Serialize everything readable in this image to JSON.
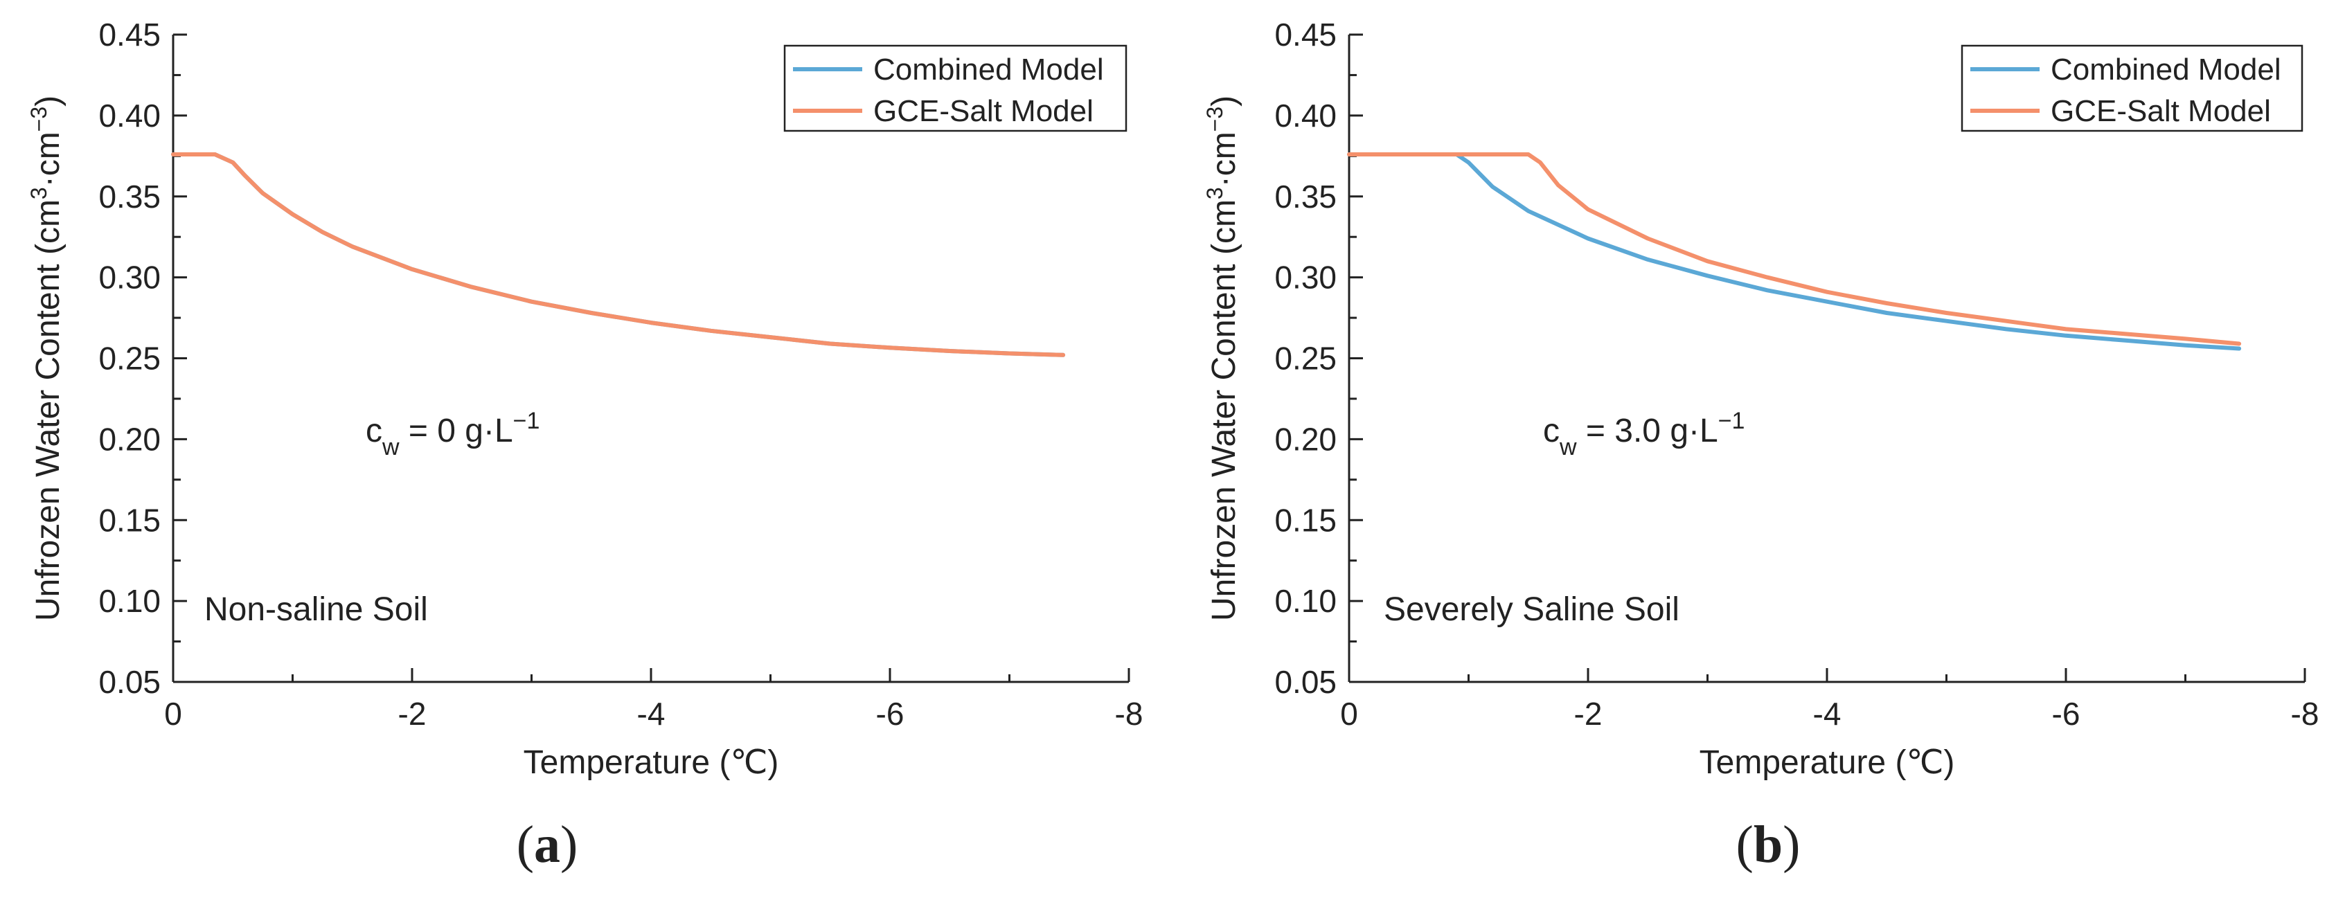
{
  "chart_data": [
    {
      "type": "line",
      "panel_label": "a",
      "title": "",
      "xlabel": "Temperature (℃)",
      "ylabel_main": "Unfrozen Water Content (cm",
      "ylabel_mid": "·cm",
      "ylabel_end": ")",
      "ylabel_sup1": "3",
      "ylabel_sup2": "−3",
      "xlim": [
        0,
        -8
      ],
      "ylim": [
        0.05,
        0.45
      ],
      "xticks": [
        0,
        -2,
        -4,
        -6,
        -8
      ],
      "xtick_labels": [
        "0",
        "-2",
        "-4",
        "-6",
        "-8"
      ],
      "yticks": [
        0.05,
        0.1,
        0.15,
        0.2,
        0.25,
        0.3,
        0.35,
        0.4,
        0.45
      ],
      "ytick_labels": [
        "0.05",
        "0.10",
        "0.15",
        "0.20",
        "0.25",
        "0.30",
        "0.35",
        "0.40",
        "0.45"
      ],
      "legend_position": "top-right",
      "legend": [
        "Combined Model",
        "GCE-Salt Model"
      ],
      "annotation_soil": "Non-saline Soil",
      "annotation_c_base": "c",
      "annotation_c_sub": "w",
      "annotation_c_value": " = 0 g·L",
      "annotation_c_sup": "−1",
      "series": [
        {
          "name": "Combined Model",
          "color": "#5ba8d6",
          "x": [
            0,
            -0.35,
            -0.5,
            -0.6,
            -0.75,
            -1.0,
            -1.25,
            -1.5,
            -2.0,
            -2.5,
            -3.0,
            -3.5,
            -4.0,
            -4.5,
            -5.0,
            -5.5,
            -6.0,
            -6.5,
            -7.0,
            -7.45
          ],
          "y": [
            0.376,
            0.376,
            0.371,
            0.363,
            0.352,
            0.339,
            0.328,
            0.319,
            0.305,
            0.294,
            0.285,
            0.278,
            0.272,
            0.267,
            0.263,
            0.259,
            0.2565,
            0.2545,
            0.253,
            0.252
          ]
        },
        {
          "name": "GCE-Salt Model",
          "color": "#f4906b",
          "x": [
            0,
            -0.35,
            -0.5,
            -0.6,
            -0.75,
            -1.0,
            -1.25,
            -1.5,
            -2.0,
            -2.5,
            -3.0,
            -3.5,
            -4.0,
            -4.5,
            -5.0,
            -5.5,
            -6.0,
            -6.5,
            -7.0,
            -7.45
          ],
          "y": [
            0.376,
            0.376,
            0.371,
            0.363,
            0.352,
            0.339,
            0.328,
            0.319,
            0.305,
            0.294,
            0.285,
            0.278,
            0.272,
            0.267,
            0.263,
            0.259,
            0.2565,
            0.2545,
            0.253,
            0.252
          ]
        }
      ]
    },
    {
      "type": "line",
      "panel_label": "b",
      "title": "",
      "xlabel": "Temperature (℃)",
      "ylabel_main": "Unfrozen Water Content (cm",
      "ylabel_mid": "·cm",
      "ylabel_end": ")",
      "ylabel_sup1": "3",
      "ylabel_sup2": "−3",
      "xlim": [
        0,
        -8
      ],
      "ylim": [
        0.05,
        0.45
      ],
      "xticks": [
        0,
        -2,
        -4,
        -6,
        -8
      ],
      "xtick_labels": [
        "0",
        "-2",
        "-4",
        "-6",
        "-8"
      ],
      "yticks": [
        0.05,
        0.1,
        0.15,
        0.2,
        0.25,
        0.3,
        0.35,
        0.4,
        0.45
      ],
      "ytick_labels": [
        "0.05",
        "0.10",
        "0.15",
        "0.20",
        "0.25",
        "0.30",
        "0.35",
        "0.40",
        "0.45"
      ],
      "legend_position": "top-right",
      "legend": [
        "Combined Model",
        "GCE-Salt Model"
      ],
      "annotation_soil": "Severely Saline Soil",
      "annotation_c_base": "c",
      "annotation_c_sub": "w",
      "annotation_c_value": " = 3.0 g·L",
      "annotation_c_sup": "−1",
      "series": [
        {
          "name": "Combined Model",
          "color": "#5ba8d6",
          "x": [
            0,
            -0.9,
            -1.0,
            -1.2,
            -1.5,
            -2.0,
            -2.5,
            -3.0,
            -3.5,
            -4.0,
            -4.5,
            -5.0,
            -5.5,
            -6.0,
            -6.5,
            -7.0,
            -7.45
          ],
          "y": [
            0.376,
            0.376,
            0.371,
            0.356,
            0.341,
            0.324,
            0.311,
            0.301,
            0.292,
            0.285,
            0.278,
            0.273,
            0.268,
            0.264,
            0.261,
            0.258,
            0.256
          ]
        },
        {
          "name": "GCE-Salt Model",
          "color": "#f4906b",
          "x": [
            0,
            -1.5,
            -1.6,
            -1.75,
            -2.0,
            -2.5,
            -3.0,
            -3.5,
            -4.0,
            -4.5,
            -5.0,
            -5.5,
            -6.0,
            -6.5,
            -7.0,
            -7.45
          ],
          "y": [
            0.376,
            0.376,
            0.371,
            0.357,
            0.342,
            0.324,
            0.31,
            0.3,
            0.291,
            0.284,
            0.278,
            0.273,
            0.268,
            0.265,
            0.262,
            0.259
          ]
        }
      ]
    }
  ]
}
